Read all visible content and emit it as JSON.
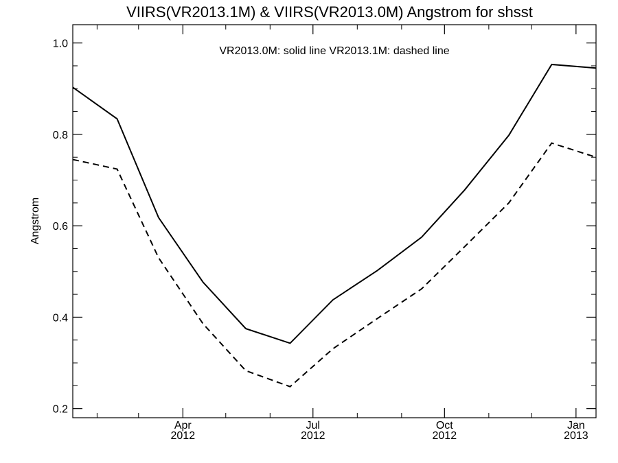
{
  "chart_data": {
    "type": "line",
    "title": "VIIRS(VR2013.1M) & VIIRS(VR2013.0M)  Angstrom for shsst",
    "annotation": "VR2013.0M: solid line   VR2013.1M: dashed line",
    "xlabel": "",
    "ylabel": "Angstrom",
    "x": [
      "2012-01-15",
      "2012-02-15",
      "2012-03-15",
      "2012-04-15",
      "2012-05-15",
      "2012-06-15",
      "2012-07-15",
      "2012-08-15",
      "2012-09-15",
      "2012-10-15",
      "2012-11-15",
      "2012-12-15",
      "2013-01-15"
    ],
    "xlim": [
      "2012-01-15",
      "2013-01-15"
    ],
    "ylim": [
      0.18,
      1.04
    ],
    "series": [
      {
        "name": "VR2013.0M",
        "style": "solid",
        "values": [
          0.903,
          0.834,
          0.618,
          0.477,
          0.375,
          0.343,
          0.438,
          0.502,
          0.575,
          0.678,
          0.798,
          0.953,
          0.945
        ]
      },
      {
        "name": "VR2013.1M",
        "style": "dashed",
        "values": [
          0.745,
          0.724,
          0.53,
          0.386,
          0.283,
          0.248,
          0.331,
          0.397,
          0.462,
          0.554,
          0.65,
          0.781,
          0.75
        ]
      }
    ],
    "yticks": [
      {
        "value": 0.2,
        "label": "0.2"
      },
      {
        "value": 0.4,
        "label": "0.4"
      },
      {
        "value": 0.6,
        "label": "0.6"
      },
      {
        "value": 0.8,
        "label": "0.8"
      },
      {
        "value": 1.0,
        "label": "1.0"
      }
    ],
    "xticks": [
      {
        "date": "2012-04-01",
        "label": "Apr",
        "year": "2012"
      },
      {
        "date": "2012-07-01",
        "label": "Jul",
        "year": "2012"
      },
      {
        "date": "2012-10-01",
        "label": "Oct",
        "year": "2012"
      },
      {
        "date": "2013-01-01",
        "label": "Jan",
        "year": "2013"
      }
    ],
    "grid": false,
    "legend": "none",
    "line_color": "#000000"
  }
}
